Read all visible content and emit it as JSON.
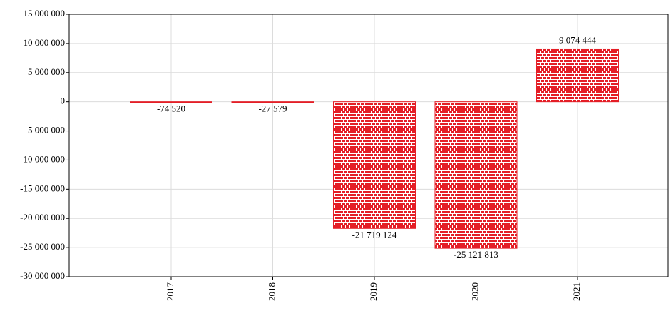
{
  "chart_data": {
    "type": "bar",
    "categories": [
      "2017",
      "2018",
      "2019",
      "2020",
      "2021"
    ],
    "values": [
      -74520,
      -27579,
      -21719124,
      -25121813,
      9074444
    ],
    "value_labels": [
      "-74 520",
      "-27 579",
      "-21 719 124",
      "-25 121 813",
      "9 074 444"
    ],
    "color": "#e41e26",
    "ylim": [
      -30000000,
      15000000
    ],
    "yticks": [
      {
        "value": -30000000,
        "label": "-30 000 000"
      },
      {
        "value": -25000000,
        "label": "-25 000 000"
      },
      {
        "value": -20000000,
        "label": "-20 000 000"
      },
      {
        "value": -15000000,
        "label": "-15 000 000"
      },
      {
        "value": -10000000,
        "label": "-10 000 000"
      },
      {
        "value": -5000000,
        "label": "-5 000 000"
      },
      0,
      {
        "value": 5000000,
        "label": "5 000 000"
      },
      {
        "value": 10000000,
        "label": "10 000 000"
      },
      {
        "value": 15000000,
        "label": "15 000 000"
      }
    ],
    "grid": true
  }
}
